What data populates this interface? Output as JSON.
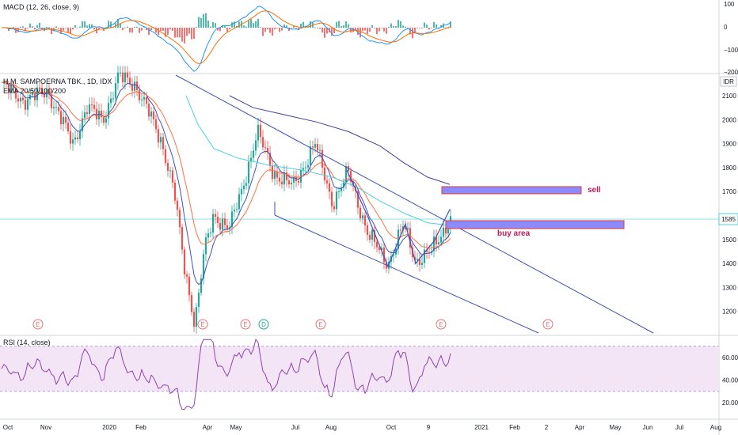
{
  "panes": {
    "macd": {
      "label": "MACD (12, 26, close, 9)",
      "ticks": [
        "100",
        "0",
        "−100",
        "−200"
      ]
    },
    "price": {
      "label": "H.M. SAMPOERNA TBK., 1D, IDX",
      "ema_label": "EMA 20/50/100/200",
      "currency": "IDR",
      "ticks": [
        "2100",
        "2000",
        "1900",
        "1800",
        "1700",
        "1600",
        "1500",
        "1400",
        "1300",
        "1200"
      ],
      "last_price": "1585",
      "events": [
        "E",
        "E",
        "E",
        "D",
        "E",
        "E",
        "E"
      ]
    },
    "rsi": {
      "label": "RSI (14, close)",
      "ticks": [
        "60.00",
        "40.00",
        "20.00"
      ],
      "band": [
        30,
        70
      ]
    }
  },
  "x_axis": {
    "labels": [
      "Oct",
      "Nov",
      "2020",
      "Feb",
      "Apr",
      "May",
      "Jul",
      "Aug",
      "Oct",
      "9",
      "2021",
      "Feb",
      "2",
      "Apr",
      "May",
      "Jun",
      "Jul",
      "Aug"
    ]
  },
  "annotations": {
    "sell": "sell",
    "buy_area": "buy area"
  },
  "colors": {
    "up": "#26a69a",
    "down": "#ef5350",
    "channel": "#3f51b5",
    "ema20": "#3f51b5",
    "ema50": "#ff7043",
    "ema100": "#4dd0e1",
    "ema200": "#3f3fa0",
    "zone_fill": "#8b8bff",
    "zone_border": "#e53935",
    "rsi_line": "#8e44ad",
    "rsi_band": "#f3e5f5",
    "event_red": "#e57373",
    "event_teal": "#26a69a"
  },
  "chart_data": [
    {
      "type": "candlestick",
      "title": "H.M. SAMPOERNA TBK., 1D, IDX",
      "y_unit": "IDR",
      "ylim": [
        1140,
        2190
      ],
      "key_levels": {
        "last": 1585,
        "sell_zone": [
          1700,
          1730
        ],
        "buy_zone": [
          1565,
          1605
        ]
      },
      "price_path": [
        [
          "Oct",
          2150
        ],
        [
          "Nov",
          1900
        ],
        [
          "Dec",
          2050
        ],
        [
          "2020",
          2180
        ],
        [
          "Feb",
          2050
        ],
        [
          "Mar",
          1700
        ],
        [
          "late Mar",
          1150
        ],
        [
          "Apr",
          1550
        ],
        [
          "May",
          1950
        ],
        [
          "Jun",
          1750
        ],
        [
          "Jul",
          1900
        ],
        [
          "Aug",
          1780
        ],
        [
          "Sep",
          1500
        ],
        [
          "Oct",
          1400
        ],
        [
          "mid Oct",
          1560
        ],
        [
          "late Oct",
          1410
        ],
        [
          "Nov",
          1585
        ]
      ]
    },
    {
      "type": "line",
      "title": "MACD (12, 26, close, 9)",
      "ylim": [
        -200,
        100
      ]
    },
    {
      "type": "line",
      "title": "RSI (14, close)",
      "ylim": [
        10,
        80
      ],
      "bands": [
        30,
        70
      ]
    }
  ]
}
